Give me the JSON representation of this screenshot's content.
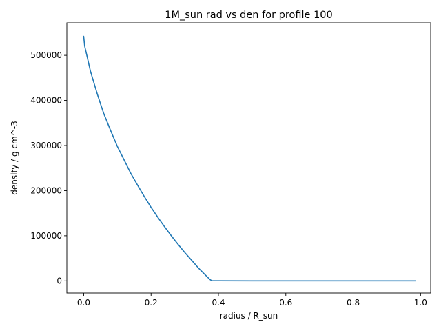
{
  "chart_data": {
    "type": "line",
    "title": "1M_sun rad vs den for profile 100",
    "xlabel": "radius / R_sun",
    "ylabel": "density / g cm^-3",
    "xlim": [
      -0.05,
      1.03
    ],
    "ylim": [
      -27000,
      572000
    ],
    "x_ticks": [
      {
        "value": 0.0,
        "label": "0.0"
      },
      {
        "value": 0.2,
        "label": "0.2"
      },
      {
        "value": 0.4,
        "label": "0.4"
      },
      {
        "value": 0.6,
        "label": "0.6"
      },
      {
        "value": 0.8,
        "label": "0.8"
      },
      {
        "value": 1.0,
        "label": "1.0"
      }
    ],
    "y_ticks": [
      {
        "value": 0,
        "label": "0"
      },
      {
        "value": 100000,
        "label": "100000"
      },
      {
        "value": 200000,
        "label": "200000"
      },
      {
        "value": 300000,
        "label": "300000"
      },
      {
        "value": 400000,
        "label": "400000"
      },
      {
        "value": 500000,
        "label": "500000"
      }
    ],
    "grid": false,
    "series": [
      {
        "color": "#1f77b4",
        "points": [
          [
            0.0,
            542000
          ],
          [
            0.003,
            520000
          ],
          [
            0.01,
            498000
          ],
          [
            0.02,
            465000
          ],
          [
            0.03,
            440000
          ],
          [
            0.04,
            415000
          ],
          [
            0.05,
            392000
          ],
          [
            0.06,
            370000
          ],
          [
            0.08,
            333000
          ],
          [
            0.1,
            298000
          ],
          [
            0.12,
            268000
          ],
          [
            0.14,
            238000
          ],
          [
            0.16,
            212000
          ],
          [
            0.18,
            187000
          ],
          [
            0.2,
            163000
          ],
          [
            0.22,
            141000
          ],
          [
            0.24,
            120000
          ],
          [
            0.26,
            100000
          ],
          [
            0.28,
            81000
          ],
          [
            0.3,
            63000
          ],
          [
            0.32,
            46000
          ],
          [
            0.34,
            29000
          ],
          [
            0.36,
            14000
          ],
          [
            0.375,
            3000
          ],
          [
            0.38,
            500
          ],
          [
            0.4,
            200
          ],
          [
            0.5,
            100
          ],
          [
            0.6,
            50
          ],
          [
            0.7,
            20
          ],
          [
            0.8,
            10
          ],
          [
            0.9,
            5
          ],
          [
            0.985,
            2
          ]
        ]
      }
    ]
  }
}
